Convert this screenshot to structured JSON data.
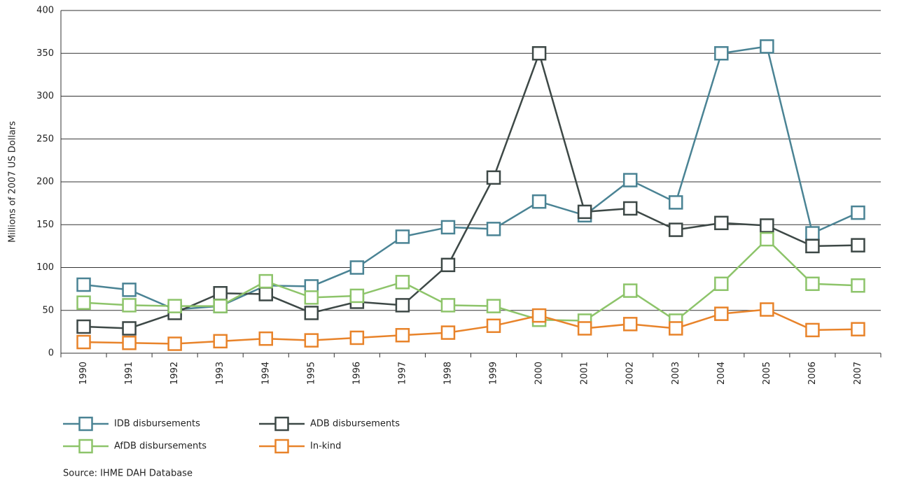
{
  "chart_data": {
    "type": "line",
    "y_label": "Millions of 2007 US Dollars",
    "categories": [
      "1990",
      "1991",
      "1992",
      "1993",
      "1994",
      "1995",
      "1996",
      "1997",
      "1998",
      "1999",
      "2000",
      "2001",
      "2002",
      "2003",
      "2004",
      "2005",
      "2006",
      "2007"
    ],
    "series": [
      {
        "name": "IDB disbursements",
        "color": "#4a8394",
        "values": [
          80,
          74,
          51,
          55,
          79,
          78,
          100,
          136,
          147,
          145,
          177,
          161,
          202,
          176,
          350,
          358,
          140,
          164
        ]
      },
      {
        "name": "ADB disbursements",
        "color": "#3d4846",
        "values": [
          31,
          29,
          47,
          70,
          69,
          47,
          60,
          56,
          103,
          205,
          350,
          165,
          169,
          144,
          152,
          149,
          125,
          126
        ]
      },
      {
        "name": "AfDB disbursements",
        "color": "#8dc46a",
        "values": [
          59,
          56,
          55,
          55,
          84,
          65,
          67,
          83,
          56,
          55,
          39,
          38,
          73,
          38,
          81,
          133,
          81,
          79
        ]
      },
      {
        "name": "In-kind",
        "color": "#e8832a",
        "values": [
          13,
          12,
          11,
          14,
          17,
          15,
          18,
          21,
          24,
          32,
          44,
          29,
          34,
          29,
          46,
          51,
          27,
          28
        ]
      }
    ],
    "ylim": [
      0,
      400
    ],
    "yticks": [
      0,
      50,
      100,
      150,
      200,
      250,
      300,
      350,
      400
    ],
    "grid": true,
    "legend": "bottom",
    "source": "Source: IHME DAH Database"
  }
}
